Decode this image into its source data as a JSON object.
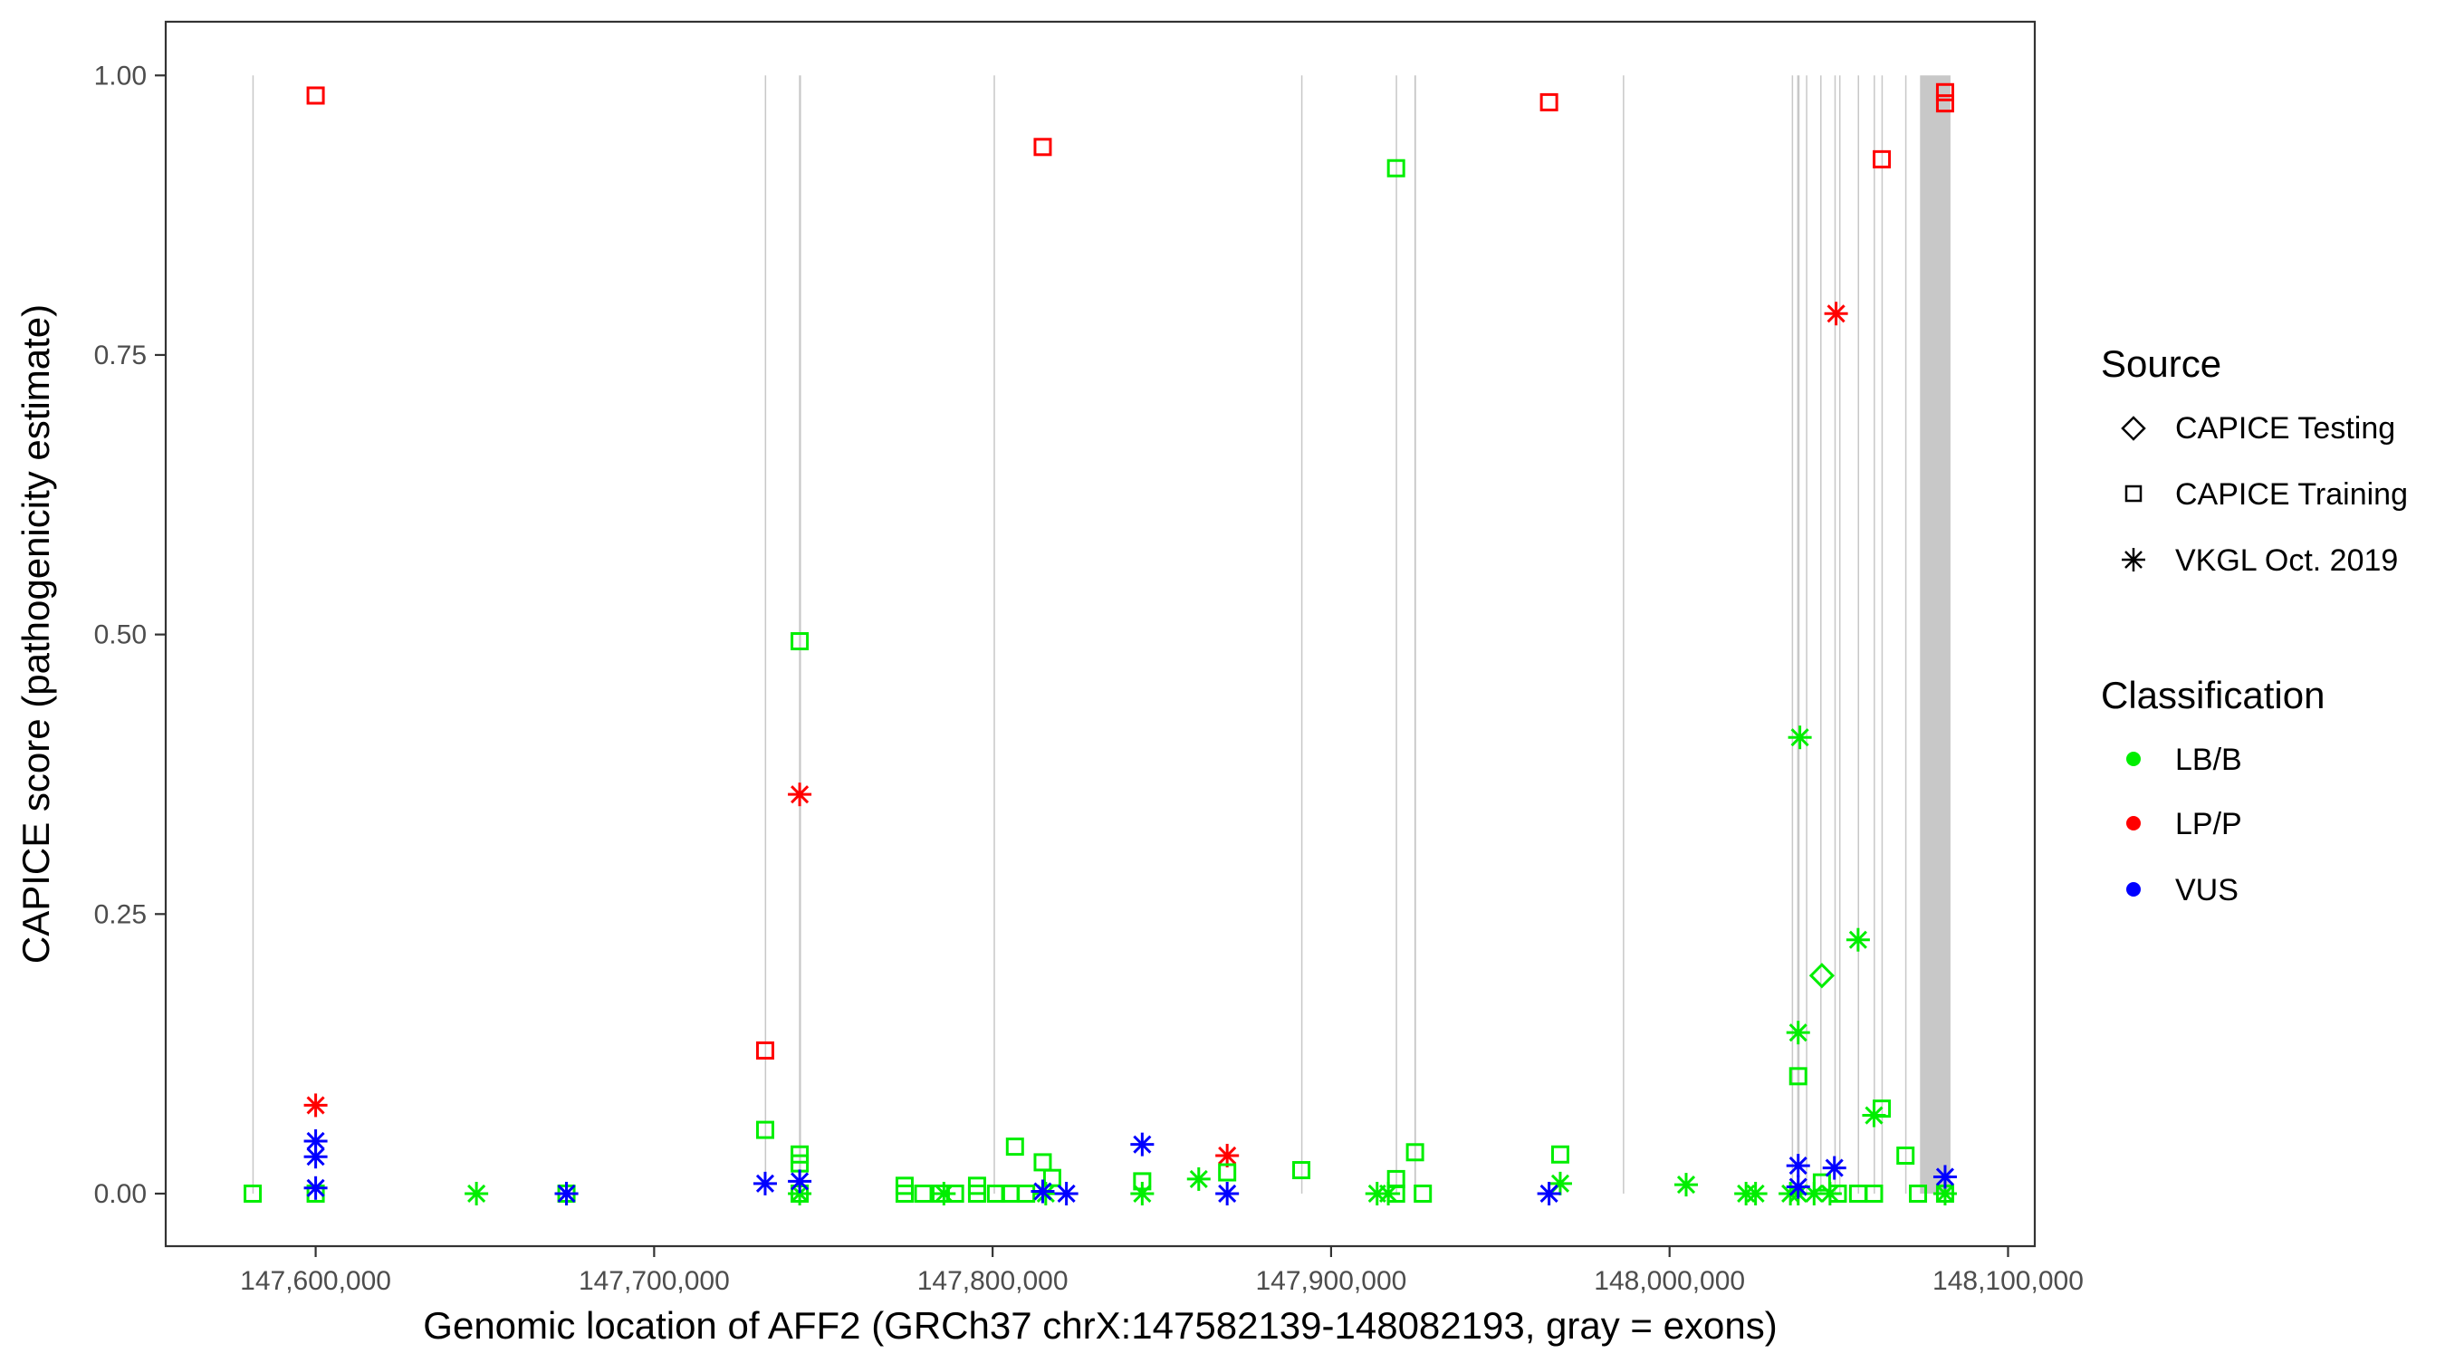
{
  "chart_data": {
    "type": "scatter",
    "title": "",
    "xlabel": "Genomic location of AFF2 (GRCh37 chrX:147582139-148082193, gray = exons)",
    "ylabel": "CAPICE score (pathogenicity estimate)",
    "xlim": [
      147555700,
      148107900
    ],
    "ylim": [
      -0.047,
      1.048
    ],
    "x_ticks": [
      147600000,
      147700000,
      147800000,
      147900000,
      148000000,
      148100000
    ],
    "x_tick_labels": [
      "147,600,000",
      "147,700,000",
      "147,800,000",
      "147,900,000",
      "148,000,000",
      "148,100,000"
    ],
    "y_ticks": [
      0,
      0.25,
      0.5,
      0.75,
      1.0
    ],
    "y_tick_labels": [
      "0.00",
      "0.25",
      "0.50",
      "0.75",
      "1.00"
    ],
    "grid": false,
    "legend_placement": "right",
    "exons": [
      [
        147581300,
        147581500
      ],
      [
        147732700,
        147732900
      ],
      [
        147742800,
        147743400
      ],
      [
        147800300,
        147800500
      ],
      [
        147891150,
        147891350
      ],
      [
        147919100,
        147919300
      ],
      [
        147924600,
        147925100
      ],
      [
        147986200,
        147986400
      ],
      [
        148036100,
        148036300
      ],
      [
        148037700,
        148038400
      ],
      [
        148040300,
        148040500
      ],
      [
        148044500,
        148044700
      ],
      [
        148048700,
        148048900
      ],
      [
        148050100,
        148050300
      ],
      [
        148055600,
        148055800
      ],
      [
        148060300,
        148060500
      ],
      [
        148062600,
        148062800
      ],
      [
        148069600,
        148069800
      ],
      [
        148074000,
        148083000
      ]
    ],
    "legend": {
      "source_title": "Source",
      "sources": [
        {
          "label": "CAPICE Testing",
          "shape": "diamond"
        },
        {
          "label": "CAPICE Training",
          "shape": "square"
        },
        {
          "label": "VKGL Oct. 2019",
          "shape": "asterisk"
        }
      ],
      "classification_title": "Classification",
      "classifications": [
        {
          "label": "LB/B",
          "color": "#00ee00"
        },
        {
          "label": "LP/P",
          "color": "#ff0000"
        },
        {
          "label": "VUS",
          "color": "#0000ff"
        }
      ]
    },
    "series": [
      {
        "source": "CAPICE Training",
        "classification": "LP/P",
        "points": [
          [
            147600000,
            0.982
          ],
          [
            147814800,
            0.936
          ],
          [
            147964400,
            0.976
          ],
          [
            148062700,
            0.925
          ],
          [
            148081400,
            0.985
          ],
          [
            148081400,
            0.975
          ],
          [
            147732800,
            0.128
          ]
        ]
      },
      {
        "source": "VKGL Oct. 2019",
        "classification": "LP/P",
        "points": [
          [
            147600000,
            0.079
          ],
          [
            147743000,
            0.357
          ],
          [
            147869300,
            0.034
          ],
          [
            148049200,
            0.787
          ]
        ]
      },
      {
        "source": "CAPICE Training",
        "classification": "LB/B",
        "points": [
          [
            147581400,
            0.0
          ],
          [
            147600000,
            0.0
          ],
          [
            147674100,
            0.0
          ],
          [
            147732800,
            0.057
          ],
          [
            147743000,
            0.494
          ],
          [
            147743000,
            0.035
          ],
          [
            147743000,
            0.027
          ],
          [
            147743000,
            0.0
          ],
          [
            147774000,
            0.007
          ],
          [
            147774000,
            0.0
          ],
          [
            147779500,
            0.0
          ],
          [
            147784700,
            0.0
          ],
          [
            147788900,
            0.0
          ],
          [
            147795400,
            0.007
          ],
          [
            147795400,
            0.0
          ],
          [
            147801000,
            0.0
          ],
          [
            147805200,
            0.0
          ],
          [
            147809900,
            0.0
          ],
          [
            147806600,
            0.042
          ],
          [
            147814800,
            0.028
          ],
          [
            147817600,
            0.014
          ],
          [
            147844200,
            0.011
          ],
          [
            147869300,
            0.019
          ],
          [
            147891200,
            0.021
          ],
          [
            147919200,
            0.917
          ],
          [
            147919200,
            0.013
          ],
          [
            147919200,
            0.0
          ],
          [
            147924800,
            0.037
          ],
          [
            147927100,
            0.0
          ],
          [
            147967700,
            0.035
          ],
          [
            148038000,
            0.105
          ],
          [
            148045000,
            0.01
          ],
          [
            148049700,
            0.0
          ],
          [
            148055700,
            0.0
          ],
          [
            148060400,
            0.0
          ],
          [
            148062700,
            0.076
          ],
          [
            148069700,
            0.034
          ],
          [
            148073400,
            0.0
          ],
          [
            148081400,
            0.0
          ]
        ]
      },
      {
        "source": "VKGL Oct. 2019",
        "classification": "LB/B",
        "points": [
          [
            147647500,
            0.0
          ],
          [
            147674100,
            0.0
          ],
          [
            147743000,
            0.0
          ],
          [
            147785600,
            0.0
          ],
          [
            147815700,
            0.0
          ],
          [
            147844200,
            0.0
          ],
          [
            147860900,
            0.013
          ],
          [
            147913600,
            0.0
          ],
          [
            147916900,
            0.0
          ],
          [
            147967700,
            0.009
          ],
          [
            148004900,
            0.008
          ],
          [
            148022600,
            0.0
          ],
          [
            148025400,
            0.0
          ],
          [
            148038500,
            0.408
          ],
          [
            148038000,
            0.144
          ],
          [
            148035700,
            0.0
          ],
          [
            148038000,
            0.0
          ],
          [
            148042700,
            0.0
          ],
          [
            148047400,
            0.0
          ],
          [
            148055700,
            0.227
          ],
          [
            148060400,
            0.07
          ],
          [
            148081400,
            0.0
          ]
        ]
      },
      {
        "source": "CAPICE Testing",
        "classification": "LB/B",
        "points": [
          [
            148045000,
            0.195
          ]
        ]
      },
      {
        "source": "VKGL Oct. 2019",
        "classification": "VUS",
        "points": [
          [
            147600000,
            0.047
          ],
          [
            147600000,
            0.033
          ],
          [
            147600000,
            0.005
          ],
          [
            147674100,
            0.0
          ],
          [
            147732800,
            0.009
          ],
          [
            147743000,
            0.011
          ],
          [
            147814800,
            0.002
          ],
          [
            147821800,
            0.0
          ],
          [
            147844200,
            0.044
          ],
          [
            147869300,
            0.0
          ],
          [
            147964400,
            0.0
          ],
          [
            148038000,
            0.025
          ],
          [
            148048700,
            0.023
          ],
          [
            148081400,
            0.015
          ],
          [
            148038000,
            0.006
          ]
        ]
      }
    ]
  }
}
